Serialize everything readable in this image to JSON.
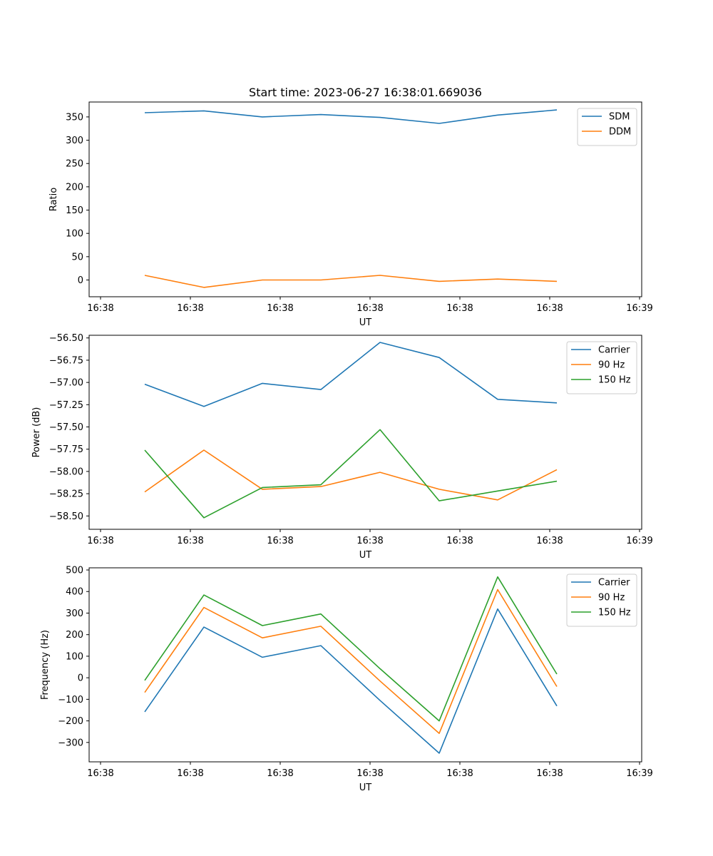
{
  "chart_data": [
    {
      "type": "line",
      "title": "Start time: 2023-06-27 16:38:01.669036",
      "xlabel": "UT",
      "ylabel": "Ratio",
      "x_tick_labels": [
        "16:38",
        "16:38",
        "16:38",
        "16:38",
        "16:38",
        "16:38",
        "16:38",
        "16:39"
      ],
      "y_ticks": [
        0,
        50,
        100,
        150,
        200,
        250,
        300,
        350
      ],
      "ylim": [
        -36,
        382
      ],
      "legend": "top-right",
      "series": [
        {
          "name": "SDM",
          "color": "#1f77b4",
          "values": [
            359,
            363,
            350,
            355,
            349,
            336,
            354,
            365
          ]
        },
        {
          "name": "DDM",
          "color": "#ff7f0e",
          "values": [
            10,
            -16,
            0,
            0,
            10,
            -3,
            2,
            -3
          ]
        }
      ]
    },
    {
      "type": "line",
      "title": "",
      "xlabel": "UT",
      "ylabel": "Power (dB)",
      "x_tick_labels": [
        "16:38",
        "16:38",
        "16:38",
        "16:38",
        "16:38",
        "16:38",
        "16:38",
        "16:39"
      ],
      "y_ticks": [
        -56.5,
        -56.75,
        -57.0,
        -57.25,
        -57.5,
        -57.75,
        -58.0,
        -58.25,
        -58.5
      ],
      "y_tick_labels": [
        "−56.50",
        "−56.75",
        "−57.00",
        "−57.25",
        "−57.50",
        "−57.75",
        "−58.00",
        "−58.25",
        "−58.50"
      ],
      "ylim": [
        -58.65,
        -56.47
      ],
      "legend": "top-right",
      "series": [
        {
          "name": "Carrier",
          "color": "#1f77b4",
          "values": [
            -57.02,
            -57.27,
            -57.01,
            -57.08,
            -56.55,
            -56.72,
            -57.19,
            -57.23
          ]
        },
        {
          "name": "90 Hz",
          "color": "#ff7f0e",
          "values": [
            -58.23,
            -57.76,
            -58.2,
            -58.17,
            -58.01,
            -58.2,
            -58.32,
            -57.98
          ]
        },
        {
          "name": "150 Hz",
          "color": "#2ca02c",
          "values": [
            -57.76,
            -58.52,
            -58.18,
            -58.15,
            -57.53,
            -58.33,
            -58.22,
            -58.11
          ]
        }
      ]
    },
    {
      "type": "line",
      "title": "",
      "xlabel": "UT",
      "ylabel": "Frequency (Hz)",
      "x_tick_labels": [
        "16:38",
        "16:38",
        "16:38",
        "16:38",
        "16:38",
        "16:38",
        "16:38",
        "16:39"
      ],
      "y_ticks": [
        -300,
        -200,
        -100,
        0,
        100,
        200,
        300,
        400,
        500
      ],
      "y_tick_labels": [
        "−300",
        "−200",
        "−100",
        "0",
        "100",
        "200",
        "300",
        "400",
        "500"
      ],
      "ylim": [
        -390,
        510
      ],
      "legend": "top-right",
      "series": [
        {
          "name": "Carrier",
          "color": "#1f77b4",
          "values": [
            -158,
            235,
            95,
            149,
            -105,
            -350,
            319,
            -131
          ]
        },
        {
          "name": "90 Hz",
          "color": "#ff7f0e",
          "values": [
            -68,
            326,
            185,
            239,
            -15,
            -258,
            409,
            -41
          ]
        },
        {
          "name": "150 Hz",
          "color": "#2ca02c",
          "values": [
            -12,
            384,
            242,
            296,
            42,
            -200,
            468,
            17
          ]
        }
      ]
    }
  ]
}
